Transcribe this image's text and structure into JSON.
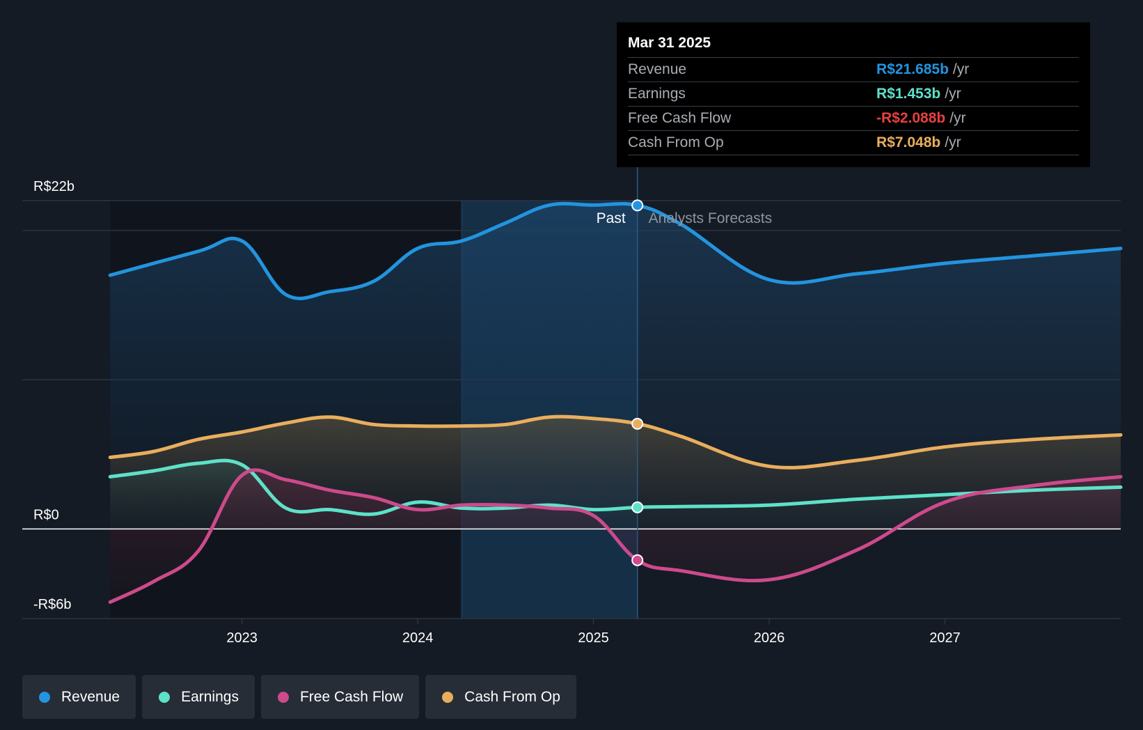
{
  "chart_data": {
    "type": "area",
    "title": "",
    "y_unit": "R$ billions",
    "ylim": [
      -6,
      22
    ],
    "y_ticks": [
      {
        "value": 22,
        "label": "R$22b"
      },
      {
        "value": 0,
        "label": "R$0"
      },
      {
        "value": -6,
        "label": "-R$6b"
      }
    ],
    "x_ticks": [
      {
        "value": 2023,
        "label": "2023"
      },
      {
        "value": 2024,
        "label": "2024"
      },
      {
        "value": 2025,
        "label": "2025"
      },
      {
        "value": 2026,
        "label": "2026"
      },
      {
        "value": 2027,
        "label": "2027"
      }
    ],
    "xlim": [
      2021.75,
      2028.0
    ],
    "present_x": 2025.25,
    "highlight_start_x": 2024.25,
    "past_label": "Past",
    "forecast_label": "Analysts Forecasts",
    "series": [
      {
        "name": "Revenue",
        "color": "#2394df",
        "points": [
          [
            2022.25,
            17.0
          ],
          [
            2022.75,
            18.6
          ],
          [
            2023.0,
            19.3
          ],
          [
            2023.25,
            15.7
          ],
          [
            2023.5,
            15.9
          ],
          [
            2023.75,
            16.6
          ],
          [
            2024.0,
            18.8
          ],
          [
            2024.25,
            19.3
          ],
          [
            2024.5,
            20.5
          ],
          [
            2024.75,
            21.7
          ],
          [
            2025.0,
            21.7
          ],
          [
            2025.25,
            21.68
          ],
          [
            2025.5,
            20.4
          ],
          [
            2026.0,
            16.7
          ],
          [
            2026.5,
            17.1
          ],
          [
            2027.0,
            17.8
          ],
          [
            2027.5,
            18.3
          ],
          [
            2028.0,
            18.8
          ]
        ]
      },
      {
        "name": "Cash From Op",
        "color": "#e9ae5d",
        "points": [
          [
            2022.25,
            4.8
          ],
          [
            2022.5,
            5.2
          ],
          [
            2022.75,
            6.0
          ],
          [
            2023.0,
            6.5
          ],
          [
            2023.25,
            7.1
          ],
          [
            2023.5,
            7.5
          ],
          [
            2023.75,
            7.0
          ],
          [
            2024.0,
            6.9
          ],
          [
            2024.25,
            6.9
          ],
          [
            2024.5,
            7.0
          ],
          [
            2024.75,
            7.5
          ],
          [
            2025.0,
            7.4
          ],
          [
            2025.25,
            7.05
          ],
          [
            2025.5,
            6.2
          ],
          [
            2026.0,
            4.2
          ],
          [
            2026.5,
            4.6
          ],
          [
            2027.0,
            5.5
          ],
          [
            2027.5,
            6.0
          ],
          [
            2028.0,
            6.3
          ]
        ]
      },
      {
        "name": "Earnings",
        "color": "#5ee1c9",
        "points": [
          [
            2022.25,
            3.5
          ],
          [
            2022.5,
            3.9
          ],
          [
            2022.75,
            4.4
          ],
          [
            2023.0,
            4.3
          ],
          [
            2023.25,
            1.4
          ],
          [
            2023.5,
            1.3
          ],
          [
            2023.75,
            1.0
          ],
          [
            2024.0,
            1.8
          ],
          [
            2024.25,
            1.4
          ],
          [
            2024.5,
            1.4
          ],
          [
            2024.75,
            1.6
          ],
          [
            2025.0,
            1.3
          ],
          [
            2025.25,
            1.45
          ],
          [
            2025.5,
            1.5
          ],
          [
            2026.0,
            1.6
          ],
          [
            2026.5,
            2.0
          ],
          [
            2027.0,
            2.3
          ],
          [
            2027.5,
            2.6
          ],
          [
            2028.0,
            2.8
          ]
        ]
      },
      {
        "name": "Free Cash Flow",
        "color": "#cd4a8c",
        "points": [
          [
            2022.25,
            -4.9
          ],
          [
            2022.5,
            -3.5
          ],
          [
            2022.75,
            -1.5
          ],
          [
            2023.0,
            3.6
          ],
          [
            2023.25,
            3.3
          ],
          [
            2023.5,
            2.6
          ],
          [
            2023.75,
            2.1
          ],
          [
            2024.0,
            1.3
          ],
          [
            2024.25,
            1.6
          ],
          [
            2024.5,
            1.6
          ],
          [
            2024.75,
            1.4
          ],
          [
            2025.0,
            0.9
          ],
          [
            2025.25,
            -2.09
          ],
          [
            2025.5,
            -2.8
          ],
          [
            2026.0,
            -3.4
          ],
          [
            2026.5,
            -1.4
          ],
          [
            2027.0,
            1.8
          ],
          [
            2027.5,
            2.9
          ],
          [
            2028.0,
            3.5
          ]
        ]
      }
    ]
  },
  "tooltip": {
    "date": "Mar 31 2025",
    "rows": [
      {
        "name": "Revenue",
        "value": "R$21.685b",
        "unit": "/yr",
        "color": "#2394df"
      },
      {
        "name": "Earnings",
        "value": "R$1.453b",
        "unit": "/yr",
        "color": "#5ee1c9"
      },
      {
        "name": "Free Cash Flow",
        "value": "-R$2.088b",
        "unit": "/yr",
        "color": "#e64141"
      },
      {
        "name": "Cash From Op",
        "value": "R$7.048b",
        "unit": "/yr",
        "color": "#e9ae5d"
      }
    ]
  },
  "legend": [
    {
      "label": "Revenue",
      "color": "#2394df"
    },
    {
      "label": "Earnings",
      "color": "#5ee1c9"
    },
    {
      "label": "Free Cash Flow",
      "color": "#cd4a8c"
    },
    {
      "label": "Cash From Op",
      "color": "#e9ae5d"
    }
  ]
}
